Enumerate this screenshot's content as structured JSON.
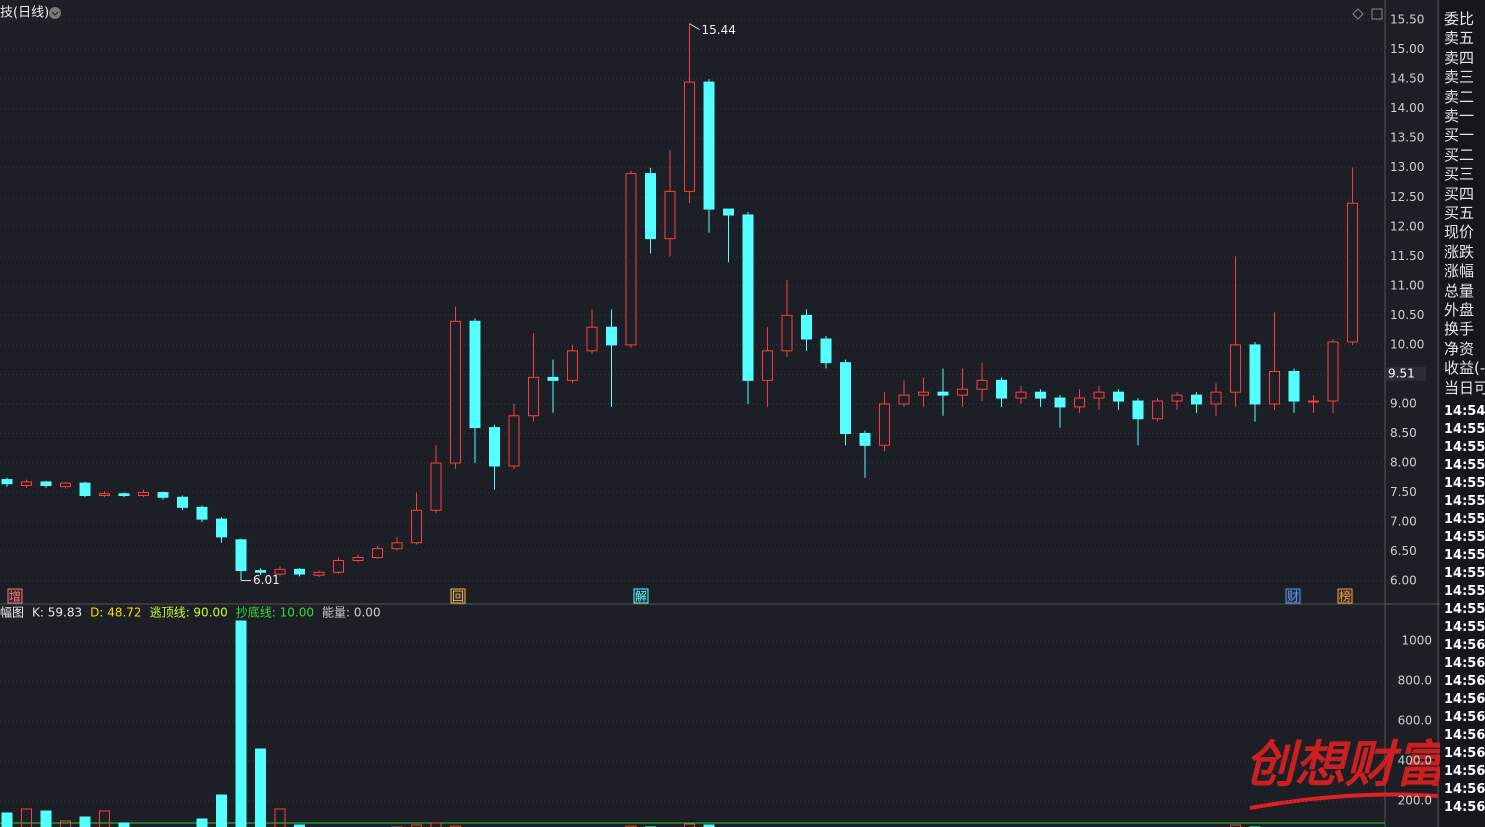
{
  "header": {
    "title": "技(日线)"
  },
  "chart_data": [
    {
      "type": "candlestick",
      "open": [
        7.72,
        7.62,
        7.68,
        7.6,
        7.66,
        7.45,
        7.48,
        7.45,
        7.5,
        7.42,
        7.25,
        7.05,
        6.7,
        6.18,
        6.12,
        6.2,
        6.1,
        6.15,
        6.35,
        6.4,
        6.55,
        6.65,
        7.2,
        8.0,
        10.4,
        8.6,
        7.95,
        8.8,
        9.45,
        9.4,
        9.9,
        10.3,
        10.0,
        12.9,
        11.8,
        12.6,
        14.45,
        12.3,
        12.2,
        9.4,
        9.9,
        10.5,
        10.1,
        9.7,
        8.5,
        8.3,
        9.0,
        9.15,
        9.2,
        9.15,
        9.25,
        9.4,
        9.1,
        9.2,
        9.1,
        8.95,
        9.1,
        9.2,
        9.05,
        8.75,
        9.05,
        9.15,
        9.0,
        9.2,
        10.0,
        9.0,
        9.55,
        9.05,
        9.05,
        10.05
      ],
      "high": [
        7.75,
        7.72,
        7.7,
        7.68,
        7.68,
        7.52,
        7.5,
        7.55,
        7.52,
        7.45,
        7.28,
        7.08,
        6.72,
        6.22,
        6.25,
        6.22,
        6.18,
        6.4,
        6.45,
        6.6,
        6.75,
        7.5,
        8.3,
        10.65,
        10.45,
        8.65,
        9.0,
        10.2,
        9.75,
        10.0,
        10.6,
        10.6,
        12.95,
        13.0,
        13.3,
        15.44,
        14.5,
        12.3,
        12.25,
        10.3,
        11.1,
        10.6,
        10.15,
        9.75,
        8.55,
        9.2,
        9.4,
        9.45,
        9.6,
        9.6,
        9.7,
        9.45,
        9.3,
        9.25,
        9.15,
        9.25,
        9.3,
        9.25,
        9.1,
        9.1,
        9.2,
        9.2,
        9.35,
        11.5,
        10.05,
        10.55,
        9.6,
        9.15,
        10.1,
        13.0
      ],
      "low": [
        7.6,
        7.58,
        7.58,
        7.57,
        7.42,
        7.42,
        7.42,
        7.42,
        7.38,
        7.2,
        7.0,
        6.65,
        6.01,
        6.1,
        6.08,
        6.08,
        6.07,
        6.12,
        6.32,
        6.38,
        6.52,
        6.62,
        7.15,
        7.9,
        8.0,
        7.55,
        7.9,
        8.7,
        8.85,
        9.35,
        9.85,
        8.95,
        9.95,
        11.55,
        11.5,
        12.4,
        11.9,
        11.4,
        9.0,
        8.95,
        9.8,
        9.9,
        9.6,
        8.3,
        7.75,
        8.2,
        8.95,
        8.95,
        8.8,
        8.95,
        9.05,
        8.95,
        9.0,
        8.95,
        8.6,
        8.85,
        8.9,
        8.9,
        8.3,
        8.7,
        8.9,
        8.85,
        8.8,
        8.95,
        8.7,
        8.9,
        8.85,
        8.85,
        8.85,
        10.0
      ],
      "close": [
        7.65,
        7.68,
        7.62,
        7.66,
        7.45,
        7.48,
        7.45,
        7.5,
        7.42,
        7.25,
        7.05,
        6.75,
        6.18,
        6.15,
        6.2,
        6.12,
        6.15,
        6.35,
        6.4,
        6.55,
        6.65,
        7.2,
        8.0,
        10.4,
        8.6,
        7.95,
        8.8,
        9.45,
        9.4,
        9.9,
        10.3,
        10.0,
        12.9,
        11.8,
        12.6,
        14.45,
        12.3,
        12.2,
        9.4,
        9.9,
        10.5,
        10.1,
        9.7,
        8.5,
        8.3,
        9.0,
        9.15,
        9.2,
        9.15,
        9.25,
        9.4,
        9.1,
        9.2,
        9.1,
        8.95,
        9.1,
        9.2,
        9.05,
        8.75,
        9.05,
        9.15,
        9.0,
        9.2,
        10.0,
        9.0,
        9.55,
        9.05,
        9.05,
        10.05,
        12.4
      ],
      "up_color": "#ff3d3d",
      "down_color": "#54ffff",
      "ylim": [
        5.63,
        15.84
      ],
      "yticks": [
        {
          "value": 6,
          "label": "6.00"
        },
        {
          "value": 6.5,
          "label": "6.50"
        },
        {
          "value": 7,
          "label": "7.00"
        },
        {
          "value": 7.5,
          "label": "7.50"
        },
        {
          "value": 8,
          "label": "8.00"
        },
        {
          "value": 8.5,
          "label": "8.50"
        },
        {
          "value": 9,
          "label": "9.00"
        },
        {
          "value": 9.5,
          "label": "9.50"
        },
        {
          "value": 10,
          "label": "10.00"
        },
        {
          "value": 10.5,
          "label": "10.50"
        },
        {
          "value": 11,
          "label": "11.00"
        },
        {
          "value": 11.5,
          "label": "11.50"
        },
        {
          "value": 12,
          "label": "12.00"
        },
        {
          "value": 12.5,
          "label": "12.50"
        },
        {
          "value": 13,
          "label": "13.00"
        },
        {
          "value": 13.5,
          "label": "13.50"
        },
        {
          "value": 14,
          "label": "14.00"
        },
        {
          "value": 14.5,
          "label": "14.50"
        },
        {
          "value": 15,
          "label": "15.00"
        },
        {
          "value": 15.5,
          "label": "15.50"
        }
      ],
      "grid": true,
      "high_label": 15.44,
      "low_label": 6.01,
      "price_marker": 9.51,
      "event_markers": [
        "增",
        "回",
        "解",
        "财",
        "榜"
      ]
    },
    {
      "type": "bar",
      "values": [
        140,
        160,
        150,
        100,
        120,
        150,
        90,
        60,
        50,
        60,
        110,
        230,
        1100,
        460,
        160,
        80,
        40,
        40,
        50,
        60,
        70,
        80,
        90,
        75,
        60,
        50,
        55,
        60,
        50,
        45,
        50,
        55,
        75,
        70,
        60,
        85,
        80,
        65,
        55,
        50,
        45,
        40,
        40,
        45,
        50,
        60,
        35,
        30,
        30,
        30,
        35,
        35,
        30,
        30,
        30,
        30,
        30,
        30,
        30,
        30,
        35,
        30,
        35,
        80,
        70,
        55,
        40,
        35,
        45,
        60
      ],
      "ylim": [
        70,
        1180
      ],
      "yticks": [
        {
          "value": 200,
          "label": "200.0"
        },
        {
          "value": 400,
          "label": "400.0"
        },
        {
          "value": 600,
          "label": "600.0"
        },
        {
          "value": 800,
          "label": "800.0"
        },
        1000
      ],
      "grid": true,
      "legend": {
        "name": "幅图",
        "items": [
          {
            "text": "K: 59.83",
            "color": "#e8e8e8"
          },
          {
            "text": "D: 48.72",
            "color": "#ffd700"
          },
          {
            "text": "逃顶线: 90.00",
            "color": "#c8ff30"
          },
          {
            "text": "抄底线: 10.00",
            "color": "#33dd33"
          },
          {
            "text": "能量: 0.00",
            "color": "#cfcfcf"
          }
        ]
      }
    }
  ],
  "side_panel": {
    "labels": [
      "委比",
      "卖五",
      "卖四",
      "卖三",
      "卖二",
      "卖一",
      "买一",
      "买二",
      "买三",
      "买四",
      "买五",
      "现价",
      "涨跌",
      "涨幅",
      "总量",
      "外盘",
      "换手",
      "净资",
      "收益(-",
      "当日可"
    ],
    "times": [
      "14:54",
      "14:55",
      "14:55",
      "14:55",
      "14:55",
      "14:55",
      "14:55",
      "14:55",
      "14:55",
      "14:55",
      "14:55",
      "14:55",
      "14:55",
      "14:56",
      "14:56",
      "14:56",
      "14:56",
      "14:56",
      "14:56",
      "14:56",
      "14:56",
      "14:56",
      "14:56"
    ]
  },
  "watermark": "创想财富"
}
